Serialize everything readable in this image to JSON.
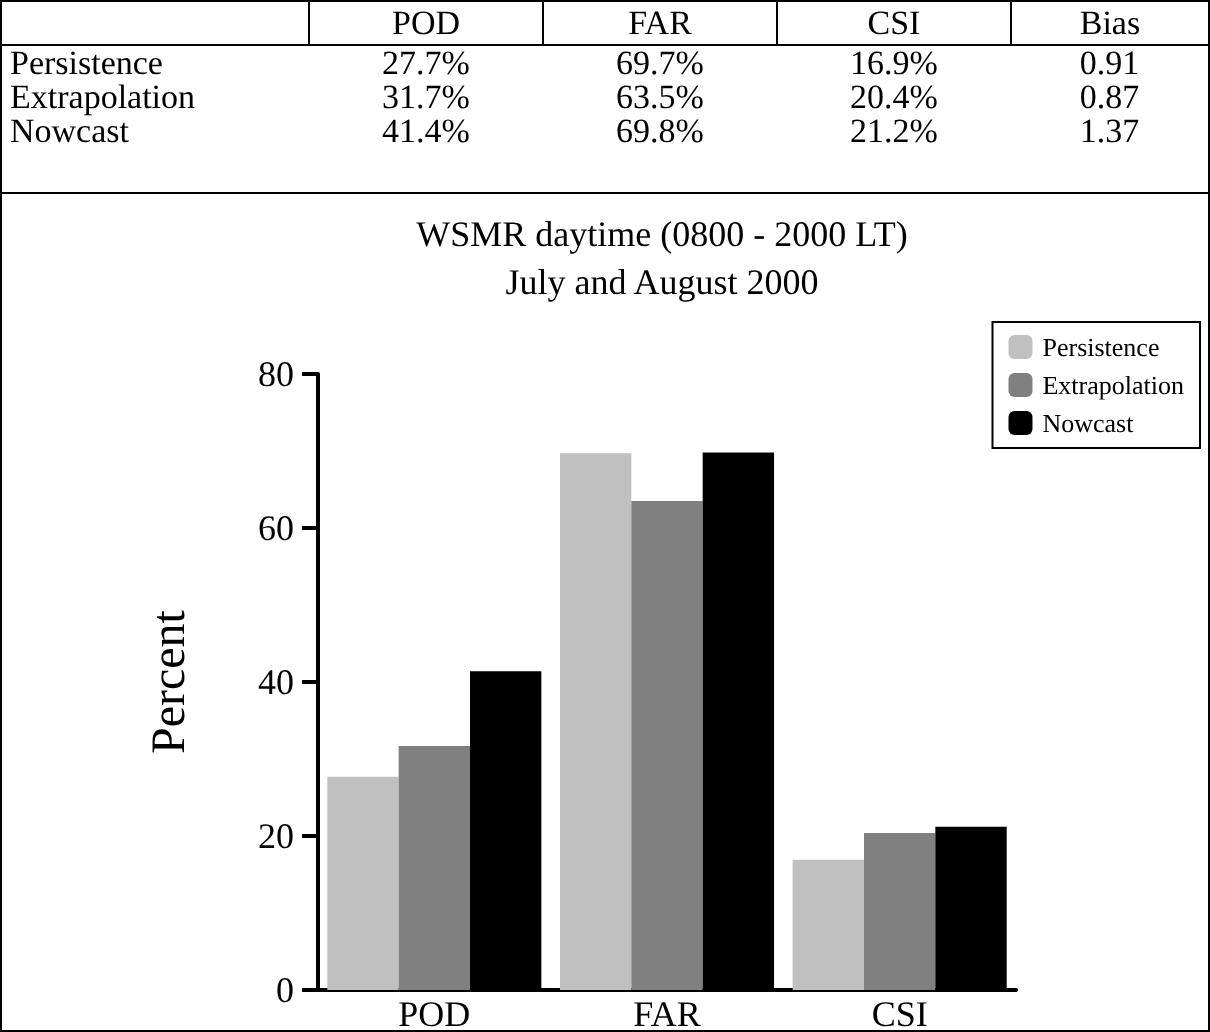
{
  "chart_data": {
    "type": "bar",
    "title": "WSMR daytime (0800 - 2000 LT)",
    "subtitle": "July and August 2000",
    "ylabel": "Percent",
    "categories": [
      "POD",
      "FAR",
      "CSI"
    ],
    "series": [
      {
        "name": "Persistence",
        "color": "#c0c0c0",
        "values": [
          27.7,
          69.7,
          16.9
        ],
        "value_labels": [
          "27.7%",
          "69.7%",
          "16.9%"
        ]
      },
      {
        "name": "Extrapolation",
        "color": "#808080",
        "values": [
          31.7,
          63.5,
          20.4
        ],
        "value_labels": [
          "31.7%",
          "63.5%",
          "20.4%"
        ]
      },
      {
        "name": "Nowcast",
        "color": "#000000",
        "values": [
          41.4,
          69.8,
          21.2
        ],
        "value_labels": [
          "41.4%",
          "69.8%",
          "21.2%"
        ]
      }
    ],
    "annotations": [
      "Bias",
      "0.91",
      "0.87",
      "1.37"
    ],
    "ylim": [
      0,
      80
    ],
    "yticks": [
      0,
      20,
      40,
      60,
      80
    ],
    "grid": false,
    "legend": "top right"
  }
}
